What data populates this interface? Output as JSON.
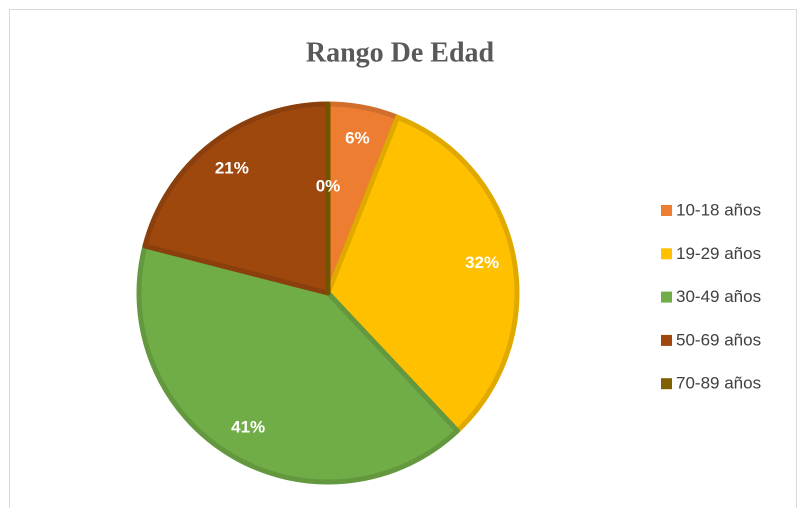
{
  "chart_data": {
    "type": "pie",
    "title": "Rango De Edad",
    "categories": [
      "10-18 años",
      "19-29 años",
      "30-49 años",
      "50-69 años",
      "70-89 años"
    ],
    "values": [
      6,
      32,
      41,
      21,
      0
    ],
    "value_labels": [
      "6%",
      "32%",
      "41%",
      "21%",
      "0%"
    ],
    "colors": [
      "#ED7D31",
      "#FFC000",
      "#70AD47",
      "#9E480E",
      "#806000"
    ],
    "legend": "right"
  }
}
